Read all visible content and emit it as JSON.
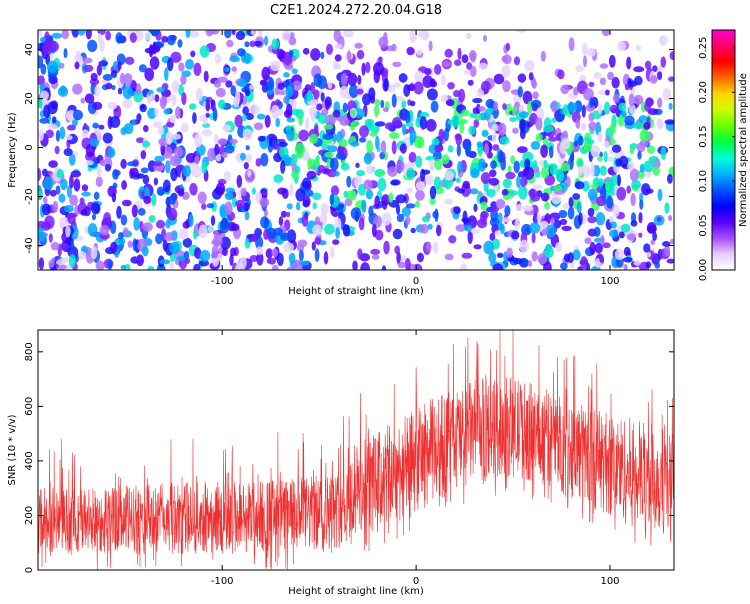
{
  "title": "C2E1.2024.272.20.04.G18",
  "chart_data": [
    {
      "type": "heatmap",
      "xlabel": "Height of straight line (km)",
      "ylabel": "Frequency (Hz)",
      "xlim": [
        -195,
        133
      ],
      "ylim": [
        -50,
        48
      ],
      "x_ticks": [
        -100,
        0,
        100
      ],
      "y_ticks": [
        -40,
        -20,
        0,
        20,
        40
      ],
      "colorbar": {
        "label": "Normalized spectral amplitude",
        "range": [
          0,
          0.27
        ],
        "ticks": [
          "0.00",
          "0.05",
          "0.10",
          "0.15",
          "0.20",
          "0.25"
        ],
        "colors": [
          "#ffffff",
          "#e6ccff",
          "#a64dff",
          "#5500ff",
          "#0000ff",
          "#0055ff",
          "#00b3ff",
          "#00ffd5",
          "#00ff40",
          "#66ff00",
          "#ccff00",
          "#ffd500",
          "#ff6600",
          "#ff0000",
          "#ff0066",
          "#ff00cc"
        ]
      },
      "grid": false
    },
    {
      "type": "line",
      "xlabel": "Height of straight line (km)",
      "ylabel": "SNR (10 * v/v)",
      "xlim": [
        -195,
        133
      ],
      "ylim": [
        0,
        880
      ],
      "x_ticks": [
        -100,
        0,
        100
      ],
      "y_ticks": [
        0,
        200,
        400,
        600,
        800
      ],
      "line_color": "#ee3030",
      "envelope": [
        {
          "x": -195,
          "low": 60,
          "high": 300
        },
        {
          "x": -150,
          "low": 60,
          "high": 310
        },
        {
          "x": -100,
          "low": 60,
          "high": 330
        },
        {
          "x": -60,
          "low": 60,
          "high": 340
        },
        {
          "x": -40,
          "low": 80,
          "high": 360
        },
        {
          "x": -30,
          "low": 110,
          "high": 470
        },
        {
          "x": -10,
          "low": 170,
          "high": 550
        },
        {
          "x": 10,
          "low": 250,
          "high": 640
        },
        {
          "x": 30,
          "low": 320,
          "high": 700
        },
        {
          "x": 50,
          "low": 340,
          "high": 710
        },
        {
          "x": 70,
          "low": 300,
          "high": 660
        },
        {
          "x": 90,
          "low": 230,
          "high": 600
        },
        {
          "x": 110,
          "low": 160,
          "high": 560
        },
        {
          "x": 133,
          "low": 120,
          "high": 520
        }
      ],
      "grid": false
    }
  ]
}
